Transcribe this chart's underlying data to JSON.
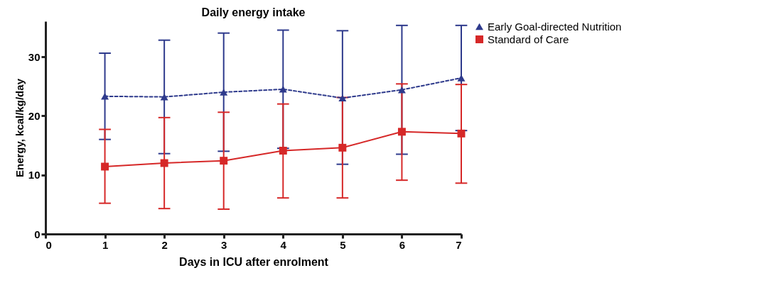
{
  "chart_data": {
    "type": "line",
    "title": "Daily energy intake",
    "xlabel": "Days in ICU after enrolment",
    "ylabel": "Energy, kcal/kg/day",
    "x": [
      1,
      2,
      3,
      4,
      5,
      6,
      7
    ],
    "series": [
      {
        "name": "Early Goal-directed Nutrition",
        "color": "#2e3a8c",
        "marker": "triangle",
        "line_style": "dashed",
        "values": [
          23.3,
          23.2,
          24.0,
          24.5,
          23.0,
          24.4,
          26.4
        ],
        "errors": [
          [
            16.0,
            30.6
          ],
          [
            13.6,
            32.8
          ],
          [
            14.0,
            34.0
          ],
          [
            14.5,
            34.5
          ],
          [
            11.8,
            34.4
          ],
          [
            13.5,
            35.3
          ],
          [
            17.5,
            35.3
          ]
        ]
      },
      {
        "name": "Standard of Care",
        "color": "#d62828",
        "marker": "square",
        "line_style": "solid",
        "values": [
          11.4,
          12.0,
          12.4,
          14.1,
          14.6,
          17.3,
          17.0
        ],
        "errors": [
          [
            5.2,
            17.7
          ],
          [
            4.3,
            19.7
          ],
          [
            4.2,
            20.6
          ],
          [
            6.1,
            22.0
          ],
          [
            6.1,
            23.1
          ],
          [
            9.1,
            25.4
          ],
          [
            8.6,
            25.3
          ]
        ]
      }
    ],
    "xlim": [
      0,
      7
    ],
    "xticks": [
      0,
      1,
      2,
      3,
      4,
      5,
      6,
      7
    ],
    "ylim": [
      0,
      36
    ],
    "yticks": [
      0,
      10,
      20,
      30
    ],
    "grid": false,
    "legend": "right"
  }
}
